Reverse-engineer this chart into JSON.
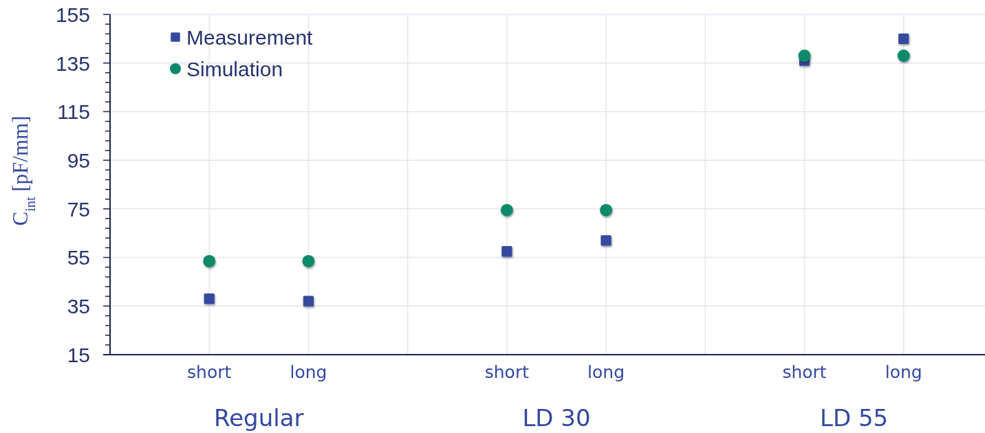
{
  "chart_data": {
    "type": "scatter",
    "ylabel": "C$_{int}$ [pF/mm]",
    "categories": [
      "short",
      "long",
      null,
      "short",
      "long",
      null,
      "short",
      "long"
    ],
    "annotations": [
      "Regular",
      "LD 30",
      "LD 55"
    ],
    "series": [
      {
        "name": "Measurement",
        "color": "#354a9e",
        "marker": "square",
        "values": [
          38,
          37,
          null,
          57.5,
          62,
          null,
          136,
          145
        ]
      },
      {
        "name": "Simulation",
        "color": "#0b8a6b",
        "marker": "circle",
        "values": [
          53.5,
          53.5,
          null,
          74.5,
          74.5,
          null,
          138,
          138
        ]
      }
    ],
    "ylim": [
      15,
      155
    ],
    "yticks": [
      15,
      {
        "value": 19,
        "label": null
      },
      {
        "value": 23,
        "label": null
      },
      {
        "value": 27,
        "label": null
      },
      {
        "value": 31,
        "label": null
      },
      35,
      {
        "value": 39,
        "label": null
      },
      {
        "value": 43,
        "label": null
      },
      {
        "value": 47,
        "label": null
      },
      {
        "value": 51,
        "label": null
      },
      55,
      {
        "value": 59,
        "label": null
      },
      {
        "value": 63,
        "label": null
      },
      {
        "value": 67,
        "label": null
      },
      {
        "value": 71,
        "label": null
      },
      75,
      {
        "value": 79,
        "label": null
      },
      {
        "value": 83,
        "label": null
      },
      {
        "value": 87,
        "label": null
      },
      {
        "value": 91,
        "label": null
      },
      95,
      {
        "value": 99,
        "label": null
      },
      {
        "value": 103,
        "label": null
      },
      {
        "value": 107,
        "label": null
      },
      {
        "value": 111,
        "label": null
      },
      115,
      {
        "value": 119,
        "label": null
      },
      {
        "value": 123,
        "label": null
      },
      {
        "value": 127,
        "label": null
      },
      {
        "value": 131,
        "label": null
      },
      135,
      {
        "value": 139,
        "label": null
      },
      {
        "value": 143,
        "label": null
      },
      {
        "value": 147,
        "label": null
      },
      {
        "value": 151,
        "label": null
      },
      155
    ],
    "grid": true,
    "legend": "top left"
  }
}
